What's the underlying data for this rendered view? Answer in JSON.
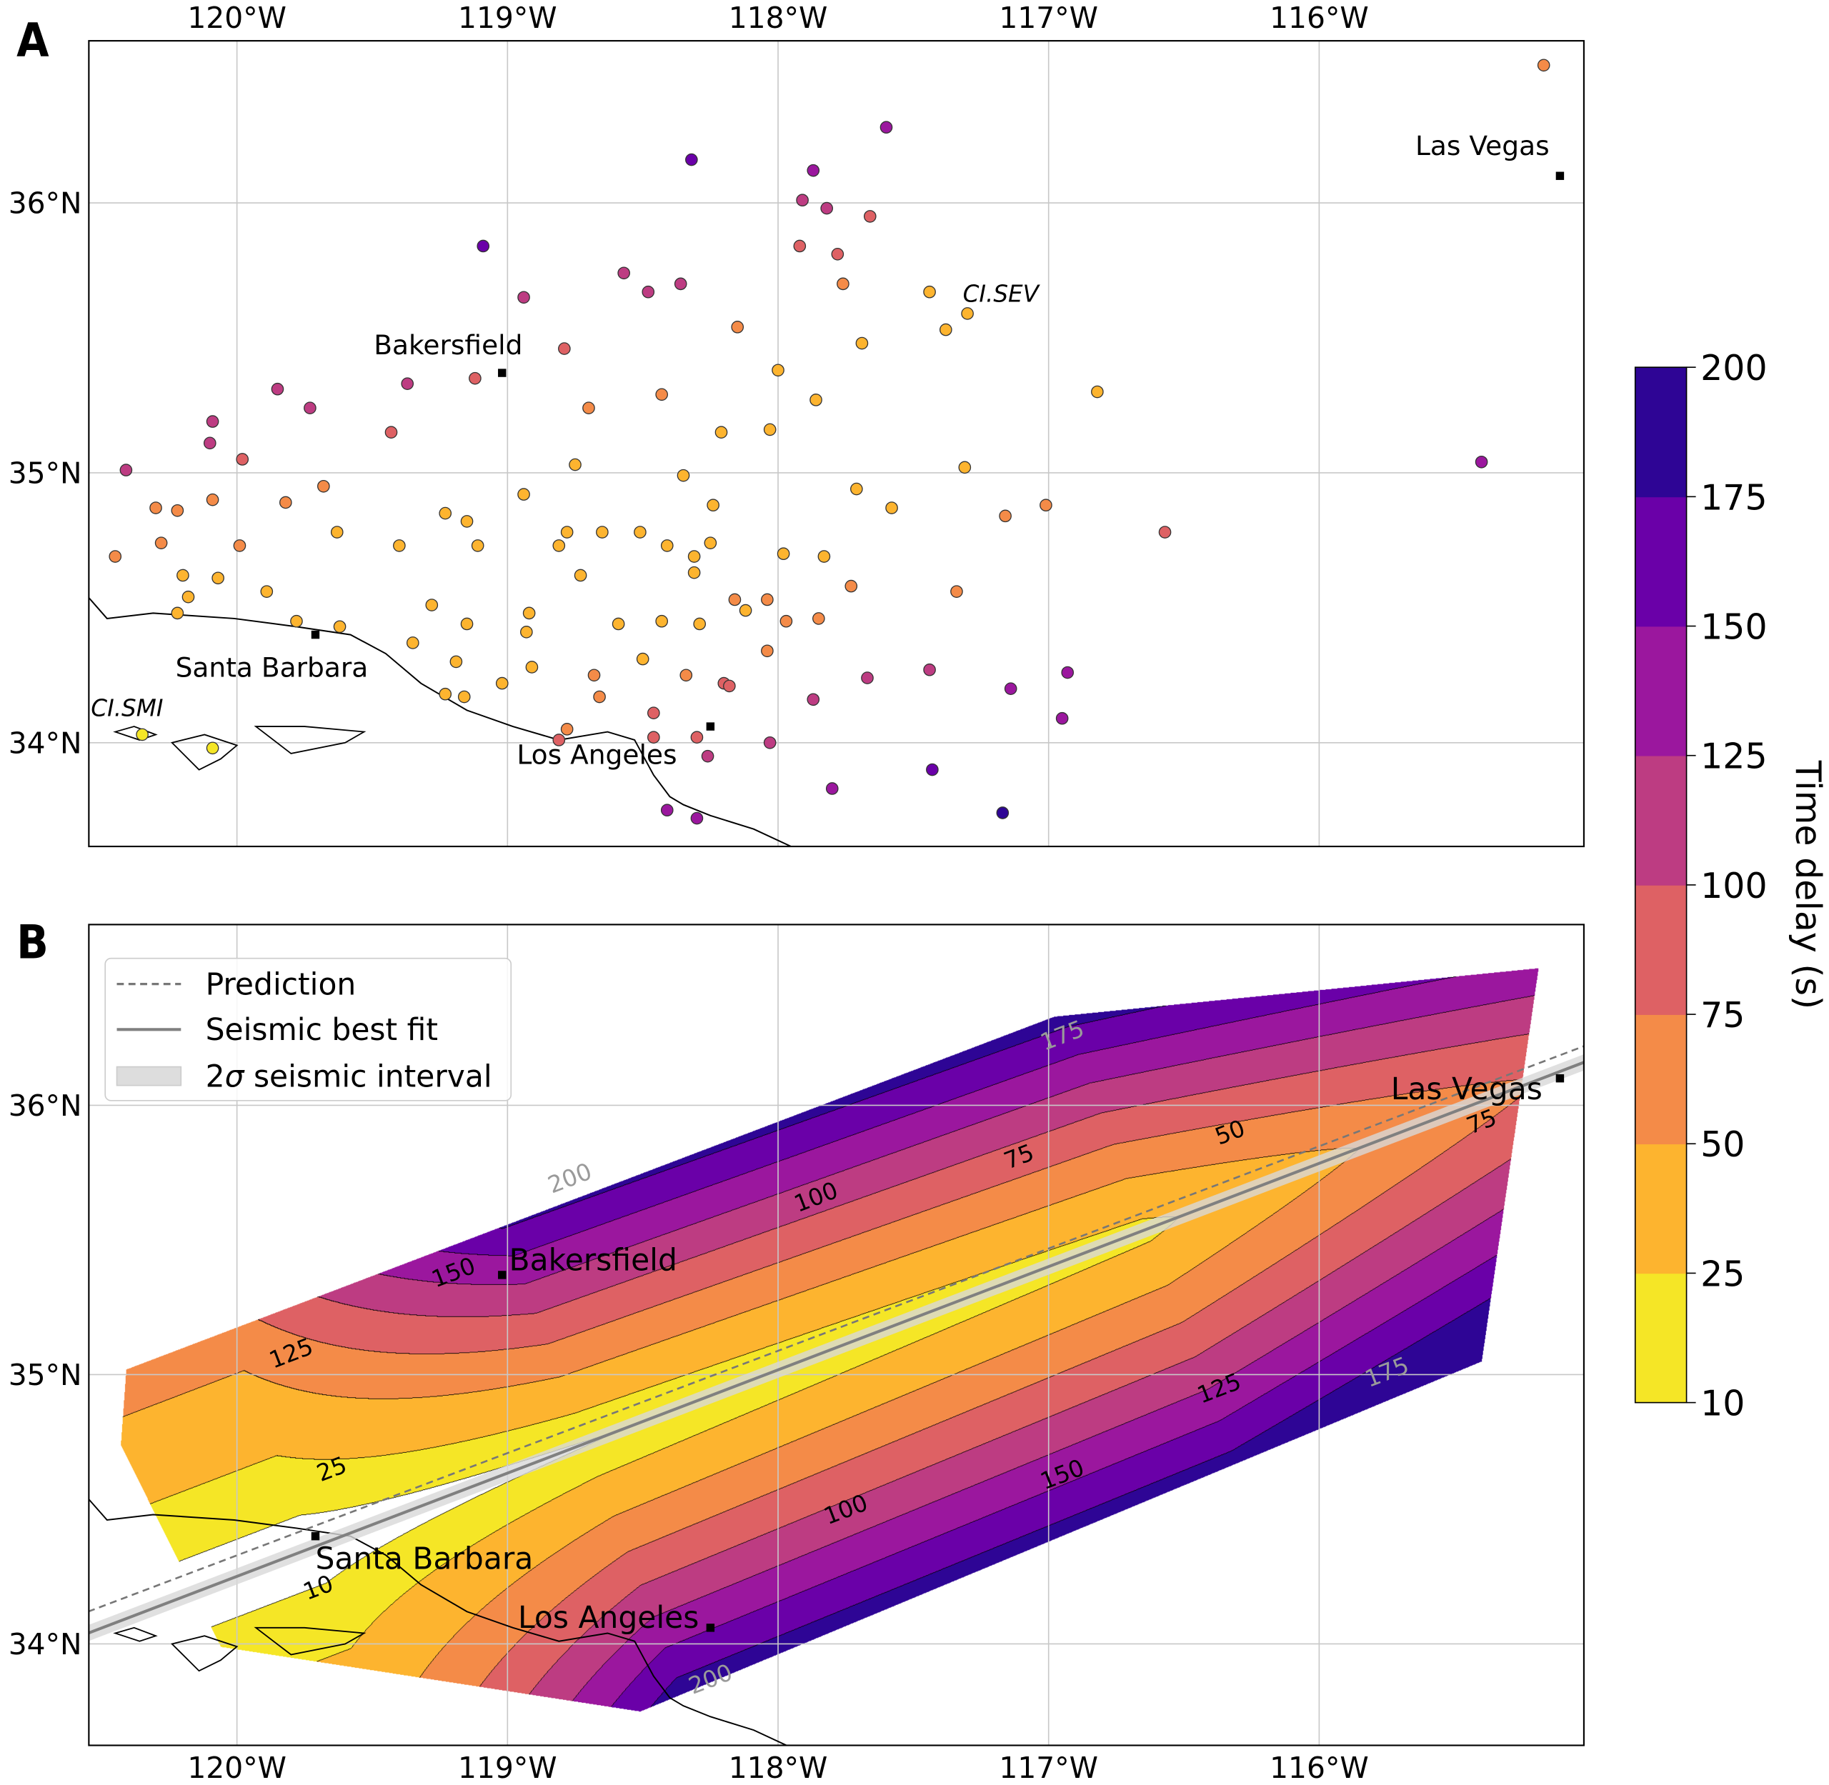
{
  "panels": {
    "a_label": "A",
    "b_label": "B"
  },
  "axes": {
    "lon_ticks": [
      -120,
      -119,
      -118,
      -117,
      -116
    ],
    "lon_tick_labels": [
      "120°W",
      "119°W",
      "118°W",
      "117°W",
      "116°W"
    ],
    "lat_ticks": [
      34,
      35,
      36
    ],
    "lat_tick_labels": [
      "34°N",
      "35°N",
      "36°N"
    ],
    "lon_range": [
      -120.55,
      -115.02
    ],
    "lat_range": [
      33.62,
      36.62
    ],
    "grid": true
  },
  "colorbar": {
    "label": "Time delay (s)",
    "levels": [
      10,
      25,
      50,
      75,
      100,
      125,
      150,
      175,
      200
    ],
    "tick_labels": [
      "10",
      "25",
      "50",
      "75",
      "100",
      "125",
      "150",
      "175",
      "200"
    ],
    "colors": [
      "#f5e626",
      "#fdb42f",
      "#f48b48",
      "#de6164",
      "#bd3c82",
      "#9b179e",
      "#6a00a8",
      "#2e0595"
    ]
  },
  "cities": [
    {
      "name": "Las Vegas",
      "lon": -115.11,
      "lat": 36.1
    },
    {
      "name": "Bakersfield",
      "lon": -119.02,
      "lat": 35.37
    },
    {
      "name": "Santa Barbara",
      "lon": -119.71,
      "lat": 34.4
    },
    {
      "name": "Los Angeles",
      "lon": -118.25,
      "lat": 34.06
    }
  ],
  "stations_labeled": [
    {
      "name": "CI.SEV",
      "lon": -117.3,
      "lat": 35.59
    },
    {
      "name": "CI.SMI",
      "lon": -120.35,
      "lat": 34.03
    }
  ],
  "legend": {
    "items": [
      {
        "label": "Prediction",
        "style": "dashed",
        "color": "#777777"
      },
      {
        "label": "Seismic best fit",
        "style": "solid",
        "color": "#808080"
      },
      {
        "label_prefix": "2",
        "label_sigma": "σ",
        "label_suffix": " seismic interval",
        "style": "band",
        "color": "#dddddd"
      }
    ],
    "placement": "upper-left"
  },
  "chart_data": [
    {
      "type": "scatter",
      "panel": "A",
      "xlabel": "",
      "ylabel": "",
      "fields": [
        "lon",
        "lat",
        "time_delay_s"
      ],
      "points": [
        [
          -115.17,
          36.51,
          60
        ],
        [
          -117.6,
          36.28,
          135
        ],
        [
          -118.32,
          36.16,
          150
        ],
        [
          -117.87,
          36.12,
          125
        ],
        [
          -119.09,
          35.84,
          150
        ],
        [
          -117.91,
          36.01,
          100
        ],
        [
          -117.82,
          35.98,
          105
        ],
        [
          -117.66,
          35.95,
          95
        ],
        [
          -117.92,
          35.84,
          90
        ],
        [
          -117.78,
          35.81,
          85
        ],
        [
          -118.57,
          35.74,
          100
        ],
        [
          -118.48,
          35.67,
          100
        ],
        [
          -118.36,
          35.7,
          100
        ],
        [
          -118.94,
          35.65,
          115
        ],
        [
          -117.76,
          35.7,
          60
        ],
        [
          -117.44,
          35.67,
          45
        ],
        [
          -117.3,
          35.59,
          35
        ],
        [
          -117.38,
          35.53,
          40
        ],
        [
          -118.15,
          35.54,
          55
        ],
        [
          -118.79,
          35.46,
          85
        ],
        [
          -117.69,
          35.48,
          40
        ],
        [
          -119.12,
          35.35,
          80
        ],
        [
          -119.37,
          35.33,
          100
        ],
        [
          -119.85,
          35.31,
          110
        ],
        [
          -119.73,
          35.24,
          110
        ],
        [
          -118.0,
          35.38,
          35
        ],
        [
          -118.43,
          35.29,
          55
        ],
        [
          -117.86,
          35.27,
          40
        ],
        [
          -118.7,
          35.24,
          55
        ],
        [
          -116.82,
          35.3,
          30
        ],
        [
          -120.09,
          35.19,
          110
        ],
        [
          -120.1,
          35.11,
          110
        ],
        [
          -119.43,
          35.15,
          80
        ],
        [
          -118.21,
          35.15,
          35
        ],
        [
          -118.03,
          35.16,
          30
        ],
        [
          -119.98,
          35.05,
          80
        ],
        [
          -115.4,
          35.04,
          135
        ],
        [
          -120.41,
          35.01,
          115
        ],
        [
          -118.75,
          35.03,
          40
        ],
        [
          -117.31,
          35.02,
          35
        ],
        [
          -118.35,
          34.99,
          30
        ],
        [
          -119.68,
          34.95,
          60
        ],
        [
          -118.94,
          34.92,
          30
        ],
        [
          -120.09,
          34.9,
          70
        ],
        [
          -119.82,
          34.89,
          60
        ],
        [
          -120.3,
          34.87,
          70
        ],
        [
          -120.22,
          34.86,
          70
        ],
        [
          -119.23,
          34.85,
          40
        ],
        [
          -118.24,
          34.88,
          35
        ],
        [
          -117.71,
          34.94,
          35
        ],
        [
          -117.58,
          34.87,
          35
        ],
        [
          -117.16,
          34.84,
          55
        ],
        [
          -117.01,
          34.88,
          50
        ],
        [
          -119.15,
          34.82,
          40
        ],
        [
          -116.57,
          34.78,
          85
        ],
        [
          -119.63,
          34.78,
          40
        ],
        [
          -118.78,
          34.78,
          30
        ],
        [
          -118.65,
          34.78,
          40
        ],
        [
          -118.51,
          34.78,
          40
        ],
        [
          -120.28,
          34.74,
          70
        ],
        [
          -119.99,
          34.73,
          55
        ],
        [
          -119.4,
          34.73,
          40
        ],
        [
          -119.11,
          34.73,
          40
        ],
        [
          -118.81,
          34.73,
          35
        ],
        [
          -118.41,
          34.73,
          40
        ],
        [
          -118.25,
          34.74,
          35
        ],
        [
          -120.45,
          34.69,
          65
        ],
        [
          -118.31,
          34.69,
          35
        ],
        [
          -117.98,
          34.7,
          40
        ],
        [
          -117.83,
          34.69,
          40
        ],
        [
          -120.2,
          34.62,
          40
        ],
        [
          -120.07,
          34.61,
          40
        ],
        [
          -118.73,
          34.62,
          35
        ],
        [
          -118.31,
          34.63,
          40
        ],
        [
          -117.73,
          34.58,
          55
        ],
        [
          -120.18,
          34.54,
          35
        ],
        [
          -119.89,
          34.56,
          30
        ],
        [
          -117.34,
          34.56,
          65
        ],
        [
          -118.16,
          34.53,
          55
        ],
        [
          -118.04,
          34.53,
          55
        ],
        [
          -119.28,
          34.51,
          30
        ],
        [
          -118.92,
          34.48,
          25
        ],
        [
          -120.22,
          34.48,
          40
        ],
        [
          -118.12,
          34.49,
          40
        ],
        [
          -119.78,
          34.45,
          35
        ],
        [
          -119.62,
          34.43,
          35
        ],
        [
          -119.15,
          34.44,
          30
        ],
        [
          -118.59,
          34.44,
          40
        ],
        [
          -118.43,
          34.45,
          40
        ],
        [
          -118.29,
          34.44,
          40
        ],
        [
          -117.97,
          34.45,
          55
        ],
        [
          -117.85,
          34.46,
          60
        ],
        [
          -118.93,
          34.41,
          30
        ],
        [
          -119.35,
          34.37,
          30
        ],
        [
          -118.04,
          34.34,
          60
        ],
        [
          -119.19,
          34.3,
          35
        ],
        [
          -118.91,
          34.28,
          40
        ],
        [
          -118.5,
          34.31,
          40
        ],
        [
          -116.93,
          34.26,
          130
        ],
        [
          -117.44,
          34.27,
          110
        ],
        [
          -117.67,
          34.24,
          100
        ],
        [
          -119.02,
          34.22,
          40
        ],
        [
          -118.68,
          34.25,
          55
        ],
        [
          -118.34,
          34.25,
          60
        ],
        [
          -118.2,
          34.22,
          80
        ],
        [
          -118.18,
          34.21,
          75
        ],
        [
          -119.23,
          34.18,
          35
        ],
        [
          -119.16,
          34.17,
          35
        ],
        [
          -118.66,
          34.17,
          55
        ],
        [
          -117.87,
          34.16,
          100
        ],
        [
          -117.14,
          34.2,
          130
        ],
        [
          -118.46,
          34.11,
          75
        ],
        [
          -116.95,
          34.09,
          145
        ],
        [
          -118.78,
          34.05,
          60
        ],
        [
          -118.81,
          34.01,
          80
        ],
        [
          -118.3,
          34.02,
          95
        ],
        [
          -118.46,
          34.02,
          80
        ],
        [
          -118.03,
          34.0,
          110
        ],
        [
          -118.26,
          33.95,
          110
        ],
        [
          -120.09,
          33.98,
          20
        ],
        [
          -120.35,
          34.03,
          15
        ],
        [
          -117.43,
          33.9,
          150
        ],
        [
          -117.8,
          33.83,
          135
        ],
        [
          -118.41,
          33.75,
          125
        ],
        [
          -118.3,
          33.72,
          125
        ],
        [
          -117.17,
          33.74,
          190
        ]
      ]
    },
    {
      "type": "heatmap",
      "subtype": "filled-contour",
      "panel": "B",
      "xlabel": "",
      "ylabel": "",
      "levels": [
        10,
        25,
        50,
        75,
        100,
        125,
        150,
        175,
        200
      ],
      "domain_lonlat": [
        [
          -120.41,
          35.02
        ],
        [
          -116.98,
          36.33
        ],
        [
          -115.19,
          36.51
        ],
        [
          -115.4,
          35.05
        ],
        [
          -118.51,
          33.75
        ],
        [
          -120.06,
          33.99
        ],
        [
          -120.43,
          34.74
        ]
      ],
      "contour_labels": [
        {
          "text": "175",
          "lon": -116.95,
          "lat": 36.26,
          "muted": true
        },
        {
          "text": "200",
          "lon": -118.77,
          "lat": 35.73,
          "muted": true
        },
        {
          "text": "100",
          "lon": -117.86,
          "lat": 35.66,
          "muted": false
        },
        {
          "text": "75",
          "lon": -117.11,
          "lat": 35.81,
          "muted": false
        },
        {
          "text": "50",
          "lon": -116.33,
          "lat": 35.9,
          "muted": false
        },
        {
          "text": "75",
          "lon": -115.4,
          "lat": 35.94,
          "muted": false
        },
        {
          "text": "150",
          "lon": -119.2,
          "lat": 35.38,
          "muted": false
        },
        {
          "text": "125",
          "lon": -119.8,
          "lat": 35.08,
          "muted": false
        },
        {
          "text": "25",
          "lon": -119.65,
          "lat": 34.65,
          "muted": false
        },
        {
          "text": "10",
          "lon": -119.7,
          "lat": 34.21,
          "muted": false
        },
        {
          "text": "100",
          "lon": -117.75,
          "lat": 34.5,
          "muted": false
        },
        {
          "text": "150",
          "lon": -116.95,
          "lat": 34.63,
          "muted": false
        },
        {
          "text": "125",
          "lon": -116.37,
          "lat": 34.95,
          "muted": false
        },
        {
          "text": "175",
          "lon": -115.75,
          "lat": 35.01,
          "muted": true
        },
        {
          "text": "200",
          "lon": -118.25,
          "lat": 33.87,
          "muted": true
        }
      ],
      "prediction_line": [
        [
          -120.55,
          34.12
        ],
        [
          -115.02,
          36.22
        ]
      ],
      "best_fit_line": [
        [
          -120.55,
          34.04
        ],
        [
          -115.02,
          36.16
        ]
      ],
      "interval_halfwidth_deg": 0.03
    }
  ],
  "coastline": [
    [
      -120.55,
      34.54
    ],
    [
      -120.48,
      34.46
    ],
    [
      -120.31,
      34.48
    ],
    [
      -120.01,
      34.46
    ],
    [
      -119.78,
      34.43
    ],
    [
      -119.58,
      34.4
    ],
    [
      -119.45,
      34.33
    ],
    [
      -119.32,
      34.22
    ],
    [
      -119.15,
      34.12
    ],
    [
      -118.98,
      34.06
    ],
    [
      -118.81,
      34.01
    ],
    [
      -118.63,
      34.04
    ],
    [
      -118.53,
      34.01
    ],
    [
      -118.46,
      33.88
    ],
    [
      -118.4,
      33.8
    ],
    [
      -118.35,
      33.77
    ],
    [
      -118.25,
      33.73
    ],
    [
      -118.09,
      33.68
    ],
    [
      -117.94,
      33.61
    ]
  ],
  "islands": [
    [
      [
        -120.45,
        34.04
      ],
      [
        -120.38,
        34.06
      ],
      [
        -120.3,
        34.03
      ],
      [
        -120.36,
        34.01
      ],
      [
        -120.45,
        34.04
      ]
    ],
    [
      [
        -120.24,
        34.0
      ],
      [
        -120.12,
        34.03
      ],
      [
        -120.0,
        33.99
      ],
      [
        -120.06,
        33.94
      ],
      [
        -120.14,
        33.9
      ],
      [
        -120.24,
        34.0
      ]
    ],
    [
      [
        -119.93,
        34.06
      ],
      [
        -119.75,
        34.06
      ],
      [
        -119.53,
        34.04
      ],
      [
        -119.6,
        34.0
      ],
      [
        -119.8,
        33.96
      ],
      [
        -119.93,
        34.06
      ]
    ]
  ]
}
